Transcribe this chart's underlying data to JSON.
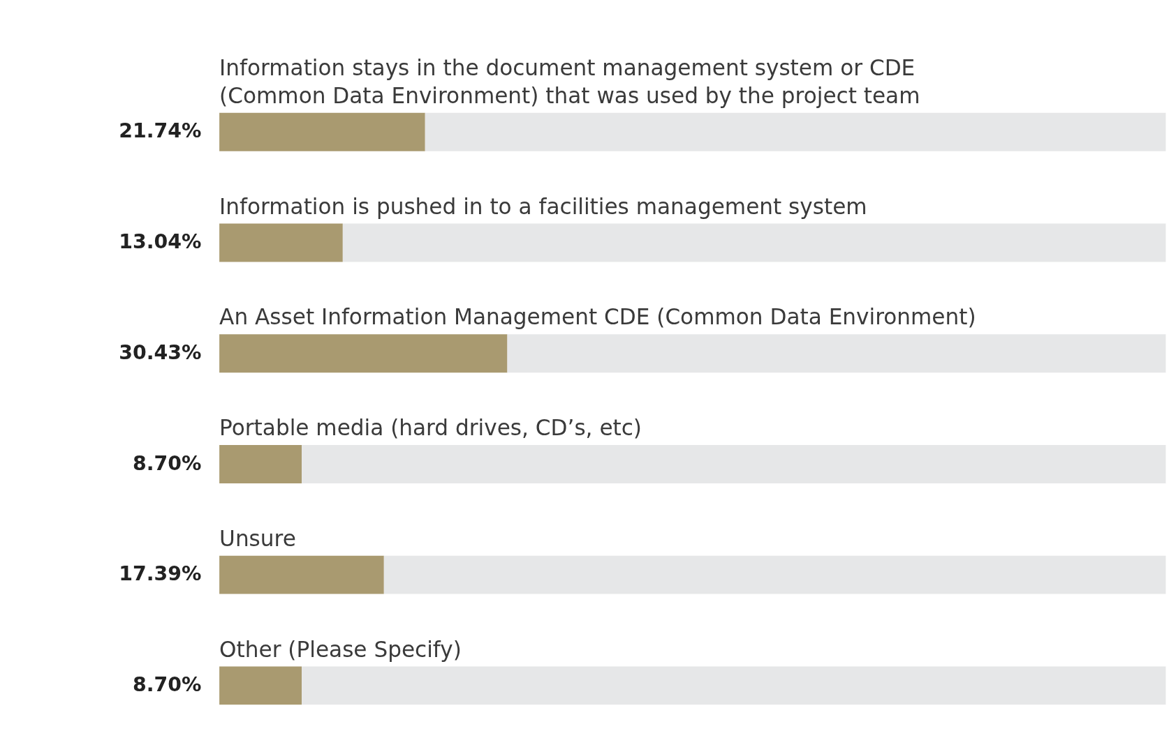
{
  "chart_data": {
    "type": "bar",
    "orientation": "horizontal",
    "stacked": true,
    "categories": [
      "Information stays in the document management system or CDE\n(Common Data Environment) that was used by the project team",
      "Information is pushed in to a facilities management system",
      "An Asset Information Management CDE (Common Data Environment)",
      "Portable media (hard drives, CD’s, etc)",
      "Unsure",
      "Other (Please Specify)"
    ],
    "xlim": [
      0,
      100
    ],
    "series": [
      {
        "color": "#a99a70",
        "values": [
          21.74,
          13.04,
          30.43,
          8.7,
          17.39,
          8.7
        ],
        "value_labels": [
          "21.74%",
          "13.04%",
          "30.43%",
          "8.70%",
          "17.39%",
          "8.70%"
        ]
      },
      {
        "color": "#e6e7e8",
        "values": [
          78.26,
          86.96,
          69.57,
          91.3,
          82.61,
          91.3
        ]
      }
    ],
    "legend": false
  }
}
